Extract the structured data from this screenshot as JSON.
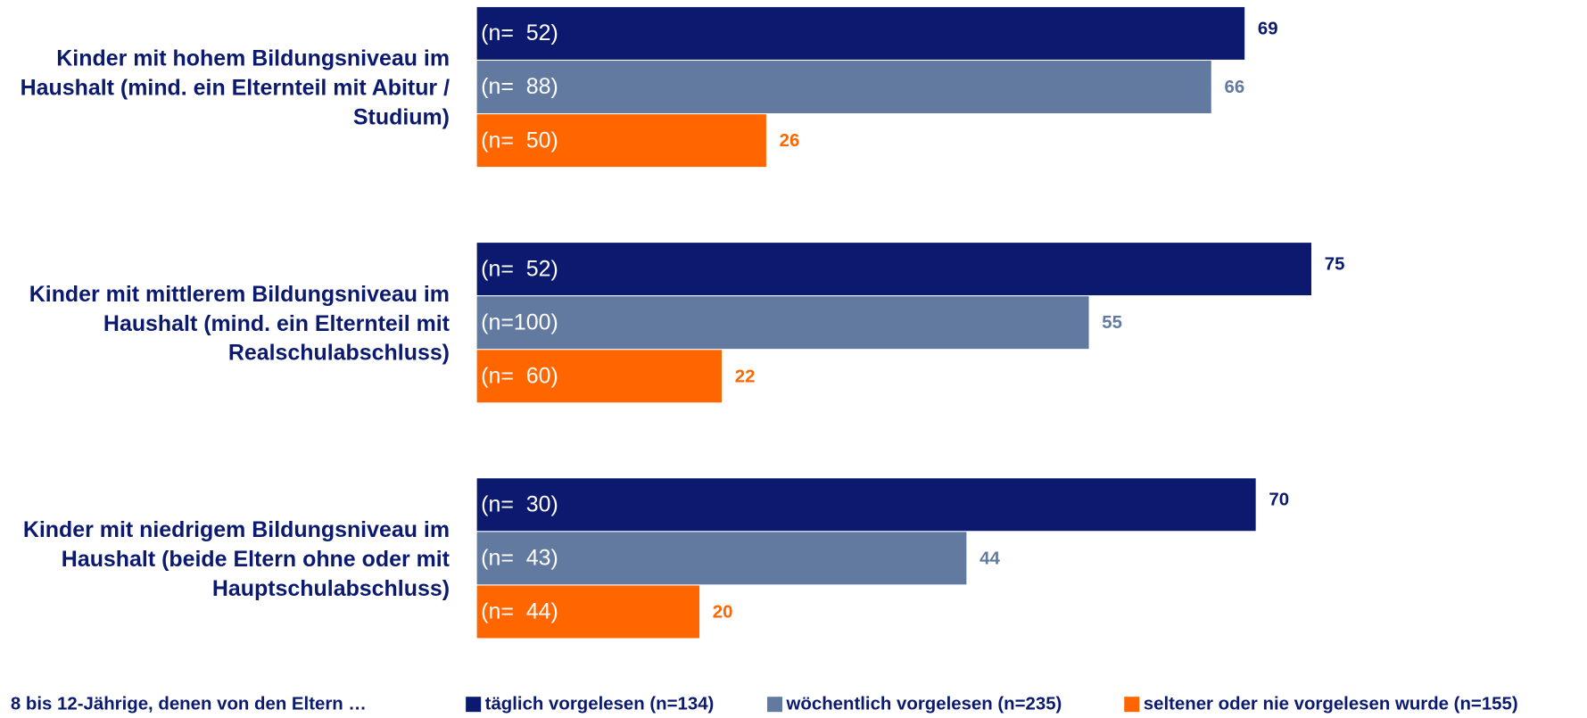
{
  "chart_data": {
    "type": "barh",
    "categories": [
      "Kinder mit hohem Bildungsniveau im Haushalt (mind. ein Elternteil mit Abitur / Studium)",
      "Kinder mit mittlerem Bildungsniveau im Haushalt (mind. ein Elternteil mit Realschulabschluss)",
      "Kinder mit niedrigem Bildungsniveau im Haushalt (beide Eltern ohne oder mit Hauptschulabschluss)"
    ],
    "series": [
      {
        "name": "täglich vorgelesen (n=134)",
        "color": "#0b1a6e",
        "values": [
          69,
          75,
          70
        ],
        "bar_labels": [
          "(n=  52)",
          "(n=  52)",
          "(n=  30)"
        ]
      },
      {
        "name": "wöchentlich vorgelesen (n=235)",
        "color": "#6279a0",
        "values": [
          66,
          55,
          44
        ],
        "bar_labels": [
          "(n=  88)",
          "(n=100)",
          "(n=  43)"
        ]
      },
      {
        "name": "seltener oder nie vorgelesen wurde (n=155)",
        "color": "#ff6600",
        "values": [
          26,
          22,
          20
        ],
        "bar_labels": [
          "(n=  50)",
          "(n=  60)",
          "(n=  44)"
        ]
      }
    ],
    "legend_title": "8 bis 12-Jährige, denen von den Eltern …",
    "xlim": [
      0,
      100
    ]
  }
}
